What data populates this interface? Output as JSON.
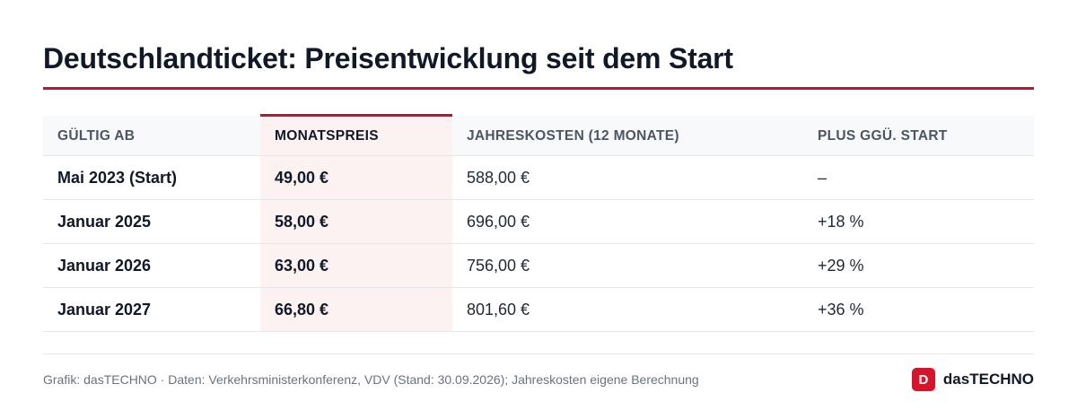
{
  "title": "Deutschlandticket: Preisentwicklung seit dem Start",
  "table": {
    "headers": [
      "Gültig ab",
      "Monatspreis",
      "Jahreskosten (12 Monate)",
      "Plus ggü. Start"
    ],
    "rows": [
      [
        "Mai 2023 (Start)",
        "49,00 €",
        "588,00 €",
        "–"
      ],
      [
        "Januar 2025",
        "58,00 €",
        "696,00 €",
        "+18 %"
      ],
      [
        "Januar 2026",
        "63,00 €",
        "756,00 €",
        "+29 %"
      ],
      [
        "Januar 2027",
        "66,80 €",
        "801,60 €",
        "+36 %"
      ]
    ]
  },
  "footer": {
    "source": "Grafik: dasTECHNO · Daten: Verkehrsministerkonferenz, VDV (Stand: 30.09.2026); Jahreskosten eigene Berechnung",
    "logo_letter": "D",
    "brand": "dasTECHNO"
  },
  "colors": {
    "accent": "#c8102e",
    "highlight_column": "#fdf2f2"
  }
}
